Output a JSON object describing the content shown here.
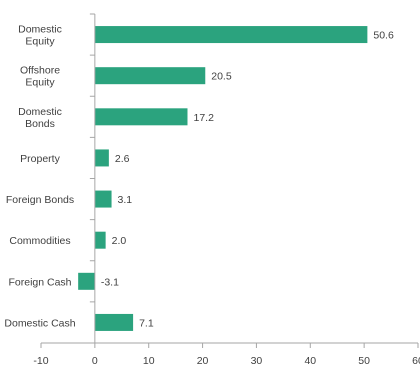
{
  "chart_data": {
    "type": "bar",
    "orientation": "horizontal",
    "categories": [
      [
        "Domestic",
        "Equity"
      ],
      [
        "Offshore",
        "Equity"
      ],
      [
        "Domestic",
        "Bonds"
      ],
      [
        "Property"
      ],
      [
        "Foreign Bonds"
      ],
      [
        "Commodities"
      ],
      [
        "Foreign Cash"
      ],
      [
        "Domestic Cash"
      ]
    ],
    "values": [
      50.6,
      20.5,
      17.2,
      2.6,
      3.1,
      2.0,
      -3.1,
      7.1
    ],
    "value_labels": [
      "50.6",
      "20.5",
      "17.2",
      "2.6",
      "3.1",
      "2.0",
      "-3.1",
      "7.1"
    ],
    "xlim": [
      -10,
      60
    ],
    "xticks": [
      -10,
      0,
      10,
      20,
      30,
      40,
      50,
      60
    ],
    "xtick_labels": [
      "-10",
      "0",
      "10",
      "20",
      "30",
      "40",
      "50",
      "60"
    ],
    "grid": false,
    "colors": {
      "bar": "#2ba37e",
      "axis": "#a6a6a6",
      "text": "#404040"
    }
  }
}
